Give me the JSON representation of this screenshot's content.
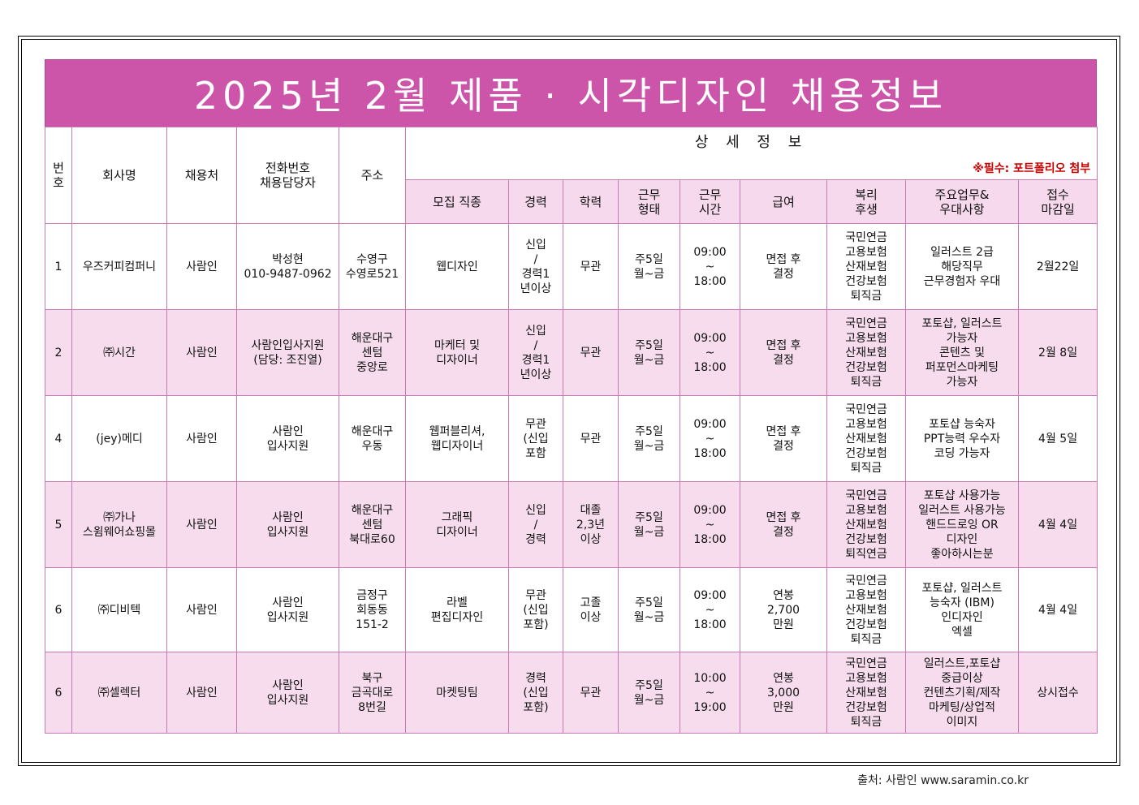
{
  "title": "2025년 2월 제품 · 시각디자인 채용정보",
  "headers": {
    "number": "번\n호",
    "company": "회사명",
    "recruiter": "채용처",
    "contact": "전화번호\n채용담당자",
    "address": "주소",
    "detail_title": "상 세 정 보",
    "required_note": "※필수: 포트폴리오 첨부",
    "job": "모집 직종",
    "career": "경력",
    "education": "학력",
    "work_type": "근무\n형태",
    "work_hours": "근무\n시간",
    "salary": "급여",
    "benefits": "복리\n후생",
    "duties": "주요업무&\n우대사항",
    "deadline": "접수\n마감일"
  },
  "rows": [
    {
      "no": "1",
      "company": "우즈커피컴퍼니",
      "recruiter": "사람인",
      "contact": "박성현\n010-9487-0962",
      "address": "수영구\n수영로521",
      "job": "웹디자인",
      "career": "신입\n/\n경력1\n년이상",
      "education": "무관",
      "work_type": "주5일\n월~금",
      "work_hours": "09:00\n~\n18:00",
      "salary": "면접 후\n결정",
      "benefits": "국민연금\n고용보험\n산재보험\n건강보험\n퇴직금",
      "duties": "일러스트 2급\n해당직무\n근무경험자 우대",
      "deadline": "2월22일"
    },
    {
      "no": "2",
      "company": "㈜시간",
      "recruiter": "사람인",
      "contact": "사람인입사지원\n(담당: 조진열)",
      "address": "해운대구\n센텀\n중앙로",
      "job": "마케터 및\n디자이너",
      "career": "신입\n/\n경력1\n년이상",
      "education": "무관",
      "work_type": "주5일\n월~금",
      "work_hours": "09:00\n~\n18:00",
      "salary": "면접 후\n결정",
      "benefits": "국민연금\n고용보험\n산재보험\n건강보험\n퇴직금",
      "duties": "포토샵, 일러스트\n가능자\n콘텐츠 및\n퍼포먼스마케팅\n가능자",
      "deadline": "2월 8일"
    },
    {
      "no": "4",
      "company": "(jey)메디",
      "recruiter": "사람인",
      "contact": "사람인\n입사지원",
      "address": "해운대구\n우동",
      "job": "웹퍼블리셔,\n웹디자이너",
      "career": "무관\n(신입\n포함",
      "education": "무관",
      "work_type": "주5일\n월~금",
      "work_hours": "09:00\n~\n18:00",
      "salary": "면접 후\n결정",
      "benefits": "국민연금\n고용보험\n산재보험\n건강보험\n퇴직금",
      "duties": "포토샵 능숙자\nPPT능력 우수자\n코딩 가능자",
      "deadline": "4월 5일"
    },
    {
      "no": "5",
      "company": "㈜가나\n스윔웨어쇼핑몰",
      "recruiter": "사람인",
      "contact": "사람인\n입사지원",
      "address": "해운대구\n센텀\n북대로60",
      "job": "그래픽\n디자이너",
      "career": "신입\n/\n경력",
      "education": "대졸\n2,3년\n이상",
      "work_type": "주5일\n월~금",
      "work_hours": "09:00\n~\n18:00",
      "salary": "면접 후\n결정",
      "benefits": "국민연금\n고용보험\n산재보험\n건강보험\n퇴직연금",
      "duties": "포토샵 사용가능\n일러스트 사용가능\n핸드드로잉 OR\n디자인\n좋아하시는분",
      "deadline": "4월 4일"
    },
    {
      "no": "6",
      "company": "㈜디비텍",
      "recruiter": "사람인",
      "contact": "사람인\n입사지원",
      "address": "금정구\n회동동\n151-2",
      "job": "라벨\n편집디자인",
      "career": "무관\n(신입\n포함)",
      "education": "고졸\n이상",
      "work_type": "주5일\n월~금",
      "work_hours": "09:00\n~\n18:00",
      "salary": "연봉\n2,700\n만원",
      "benefits": "국민연금\n고용보험\n산재보험\n건강보험\n퇴직금",
      "duties": "포토샵, 일러스트\n능숙자 (IBM)\n인디자인\n엑셀",
      "deadline": "4월 4일"
    },
    {
      "no": "6",
      "company": "㈜셀렉터",
      "recruiter": "사람인",
      "contact": "사람인\n입사지원",
      "address": "북구\n금곡대로\n8번길",
      "job": "마켓팅팀",
      "career": "경력\n(신입\n포함)",
      "education": "무관",
      "work_type": "주5일\n월~금",
      "work_hours": "10:00\n~\n19:00",
      "salary": "연봉\n3,000\n만원",
      "benefits": "국민연금\n고용보험\n산재보험\n건강보험\n퇴직금",
      "duties": "일러스트,포토샵\n중급이상\n컨텐츠기획/제작\n마케팅/상업적\n이미지",
      "deadline": "상시접수"
    }
  ],
  "source": "출처: 사람인 www.saramin.co.kr",
  "colors": {
    "title_band": "#cc55aa",
    "row_pink": "#f6dcec",
    "grid_line": "#c879b4",
    "required_note": "#cc0000"
  }
}
